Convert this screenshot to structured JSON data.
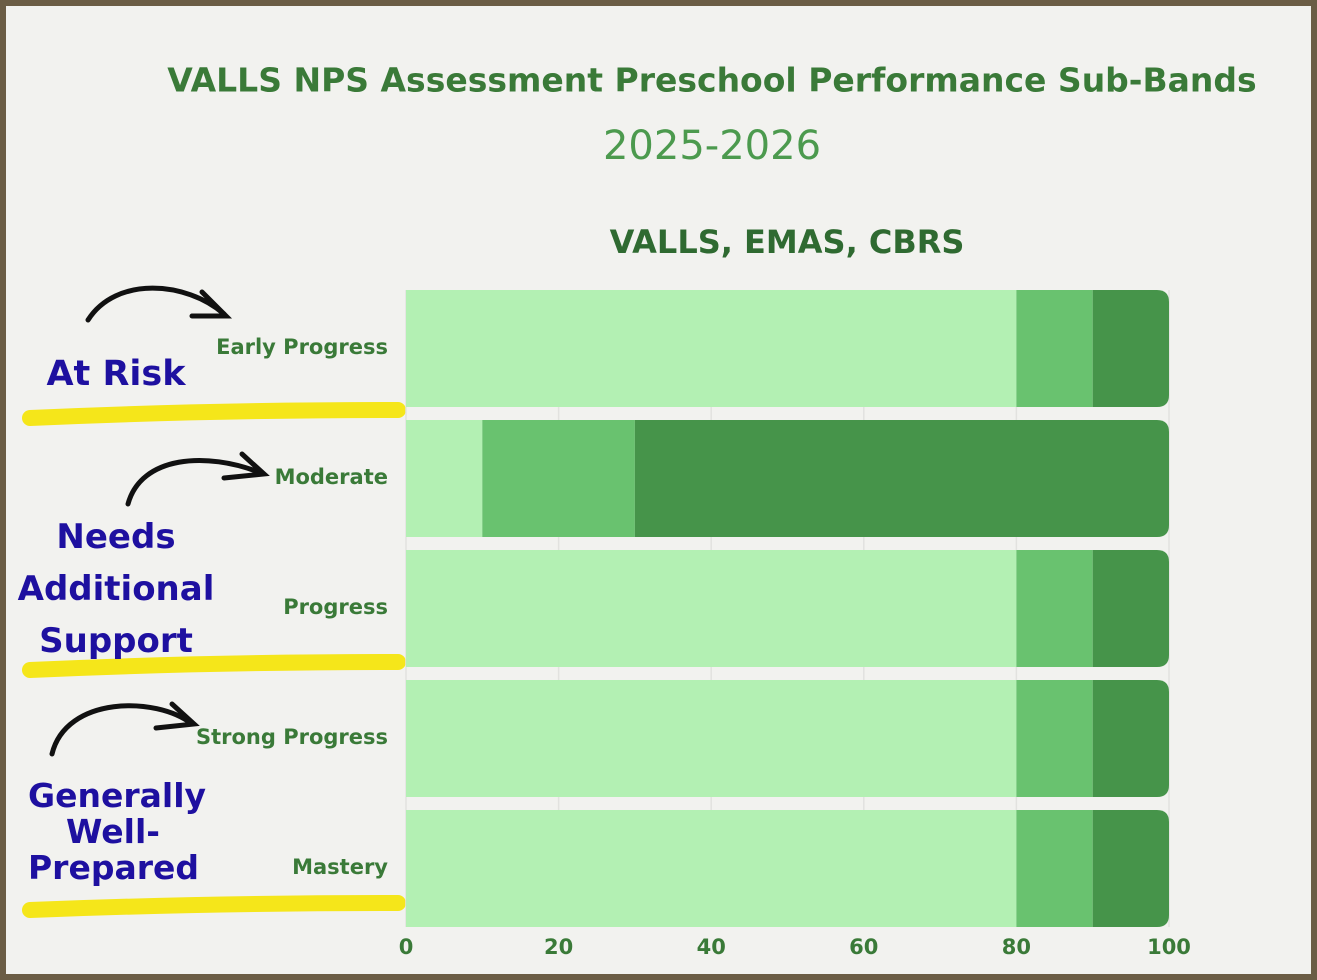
{
  "chart_data": {
    "type": "stacked-barh",
    "title": "VALLS NPS Assessment Preschool Performance Sub-Bands",
    "subtitle": "2025-2026",
    "plot_title": "VALLS, EMAS, CBRS",
    "categories": [
      "Early Progress",
      "Moderate",
      "Progress",
      "Strong Progress",
      "Mastery"
    ],
    "series": [
      {
        "color": "#b3f0b3",
        "values": [
          80,
          10,
          80,
          80,
          80
        ]
      },
      {
        "color": "#69c26f",
        "values": [
          10,
          20,
          10,
          10,
          10
        ]
      },
      {
        "color": "#46944a",
        "values": [
          10,
          70,
          10,
          10,
          10
        ]
      }
    ],
    "xlim": [
      0,
      100
    ],
    "xticks": [
      0,
      20,
      40,
      60,
      80,
      100
    ],
    "grid": true,
    "annotations": [
      "At Risk",
      "Needs Additional Support",
      "Generally Well-Prepared"
    ]
  }
}
